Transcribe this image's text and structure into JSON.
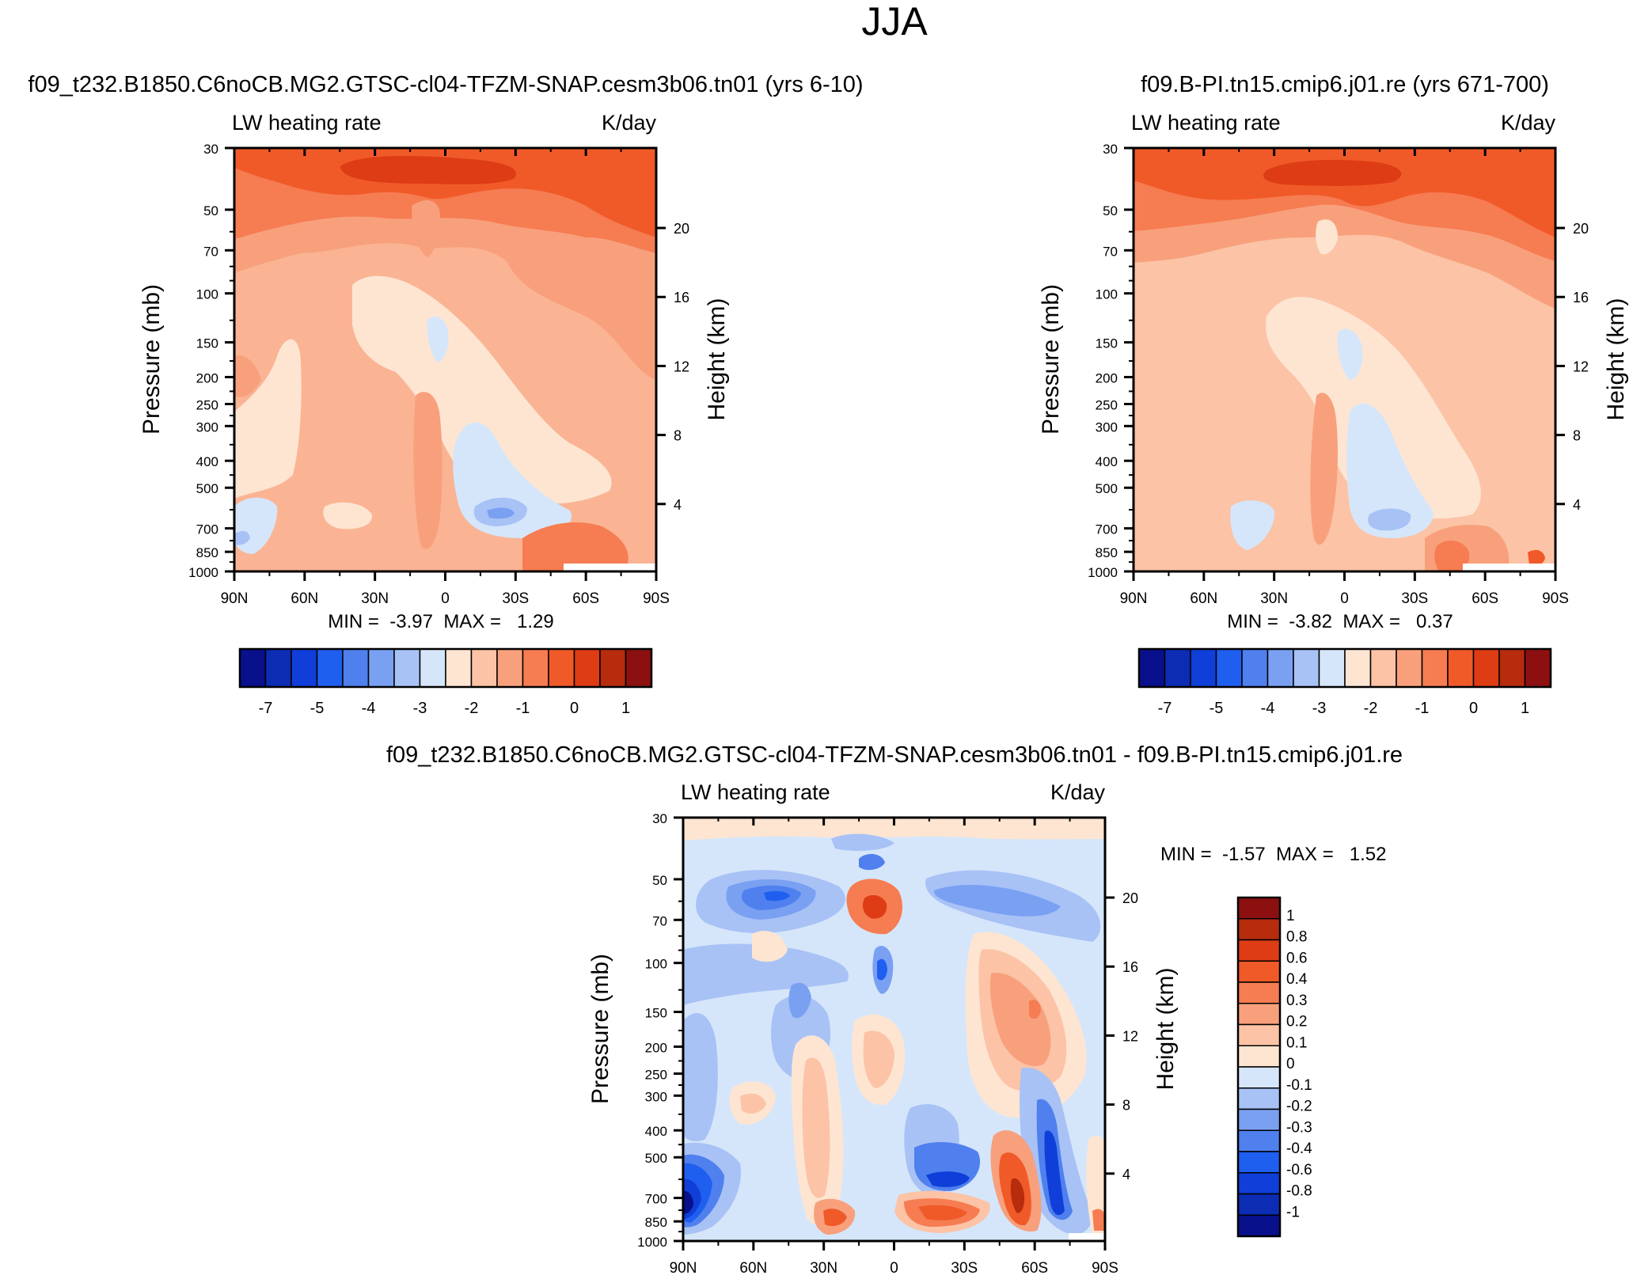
{
  "chart_data": {
    "figure_title": "JJA",
    "panels": [
      {
        "id": "top-left",
        "type": "contour",
        "title": "f09_t232.B1850.C6noCB.MG2.GTSC-cl04-TFZM-SNAP.cesm3b06.tn01 (yrs 6-10)",
        "left_label": "LW heating rate",
        "right_label": "K/day",
        "ylabel": "Pressure (mb)",
        "ylabel_right": "Height (km)",
        "pressure_ticks": [
          30,
          50,
          70,
          100,
          150,
          200,
          250,
          300,
          400,
          500,
          700,
          850,
          1000
        ],
        "height_ticks": [
          20,
          16,
          12,
          8,
          4
        ],
        "x_ticks": [
          "90N",
          "60N",
          "30N",
          "0",
          "30S",
          "60S",
          "90S"
        ],
        "min_max": "MIN =  -3.97  MAX =   1.29",
        "colorbar": {
          "orientation": "horizontal",
          "labels": [
            "-7",
            "-5",
            "-4",
            "-3",
            "-2",
            "-1",
            "0",
            "1"
          ],
          "colors": [
            "#08108c",
            "#0c2cb4",
            "#0f3fd8",
            "#1f5ff0",
            "#4f80ee",
            "#7aa0f2",
            "#a8c2f6",
            "#d5e6fa",
            "#fde5d2",
            "#fcc3a6",
            "#f8a07c",
            "#f67c52",
            "#f05a28",
            "#dd3c14",
            "#b72c0c",
            "#8c1010"
          ]
        }
      },
      {
        "id": "top-right",
        "type": "contour",
        "title": "f09.B-PI.tn15.cmip6.j01.re (yrs 671-700)",
        "left_label": "LW heating rate",
        "right_label": "K/day",
        "ylabel": "Pressure (mb)",
        "ylabel_right": "Height (km)",
        "pressure_ticks": [
          30,
          50,
          70,
          100,
          150,
          200,
          250,
          300,
          400,
          500,
          700,
          850,
          1000
        ],
        "height_ticks": [
          20,
          16,
          12,
          8,
          4
        ],
        "x_ticks": [
          "90N",
          "60N",
          "30N",
          "0",
          "30S",
          "60S",
          "90S"
        ],
        "min_max": "MIN =  -3.82  MAX =   0.37",
        "colorbar": {
          "orientation": "horizontal",
          "labels": [
            "-7",
            "-5",
            "-4",
            "-3",
            "-2",
            "-1",
            "0",
            "1"
          ],
          "colors": [
            "#08108c",
            "#0c2cb4",
            "#0f3fd8",
            "#1f5ff0",
            "#4f80ee",
            "#7aa0f2",
            "#a8c2f6",
            "#d5e6fa",
            "#fde5d2",
            "#fcc3a6",
            "#f8a07c",
            "#f67c52",
            "#f05a28",
            "#dd3c14",
            "#b72c0c",
            "#8c1010"
          ]
        }
      },
      {
        "id": "bottom",
        "type": "contour",
        "title": "f09_t232.B1850.C6noCB.MG2.GTSC-cl04-TFZM-SNAP.cesm3b06.tn01 - f09.B-PI.tn15.cmip6.j01.re",
        "left_label": "LW heating rate",
        "right_label": "K/day",
        "ylabel": "Pressure (mb)",
        "ylabel_right": "Height (km)",
        "pressure_ticks": [
          30,
          50,
          70,
          100,
          150,
          200,
          250,
          300,
          400,
          500,
          700,
          850,
          1000
        ],
        "height_ticks": [
          20,
          16,
          12,
          8,
          4
        ],
        "x_ticks": [
          "90N",
          "60N",
          "30N",
          "0",
          "30S",
          "60S",
          "90S"
        ],
        "min_max": "MIN =  -1.57  MAX =   1.52",
        "colorbar": {
          "orientation": "vertical",
          "labels": [
            "1",
            "0.8",
            "0.6",
            "0.4",
            "0.3",
            "0.2",
            "0.1",
            "0",
            "-0.1",
            "-0.2",
            "-0.3",
            "-0.4",
            "-0.6",
            "-0.8",
            "-1"
          ],
          "colors": [
            "#8c1010",
            "#b72c0c",
            "#dd3c14",
            "#f05a28",
            "#f67c52",
            "#f8a07c",
            "#fcc3a6",
            "#fde5d2",
            "#d5e6fa",
            "#a8c2f6",
            "#7aa0f2",
            "#4f80ee",
            "#1f5ff0",
            "#0f3fd8",
            "#0c2cb4",
            "#08108c"
          ]
        }
      }
    ]
  }
}
